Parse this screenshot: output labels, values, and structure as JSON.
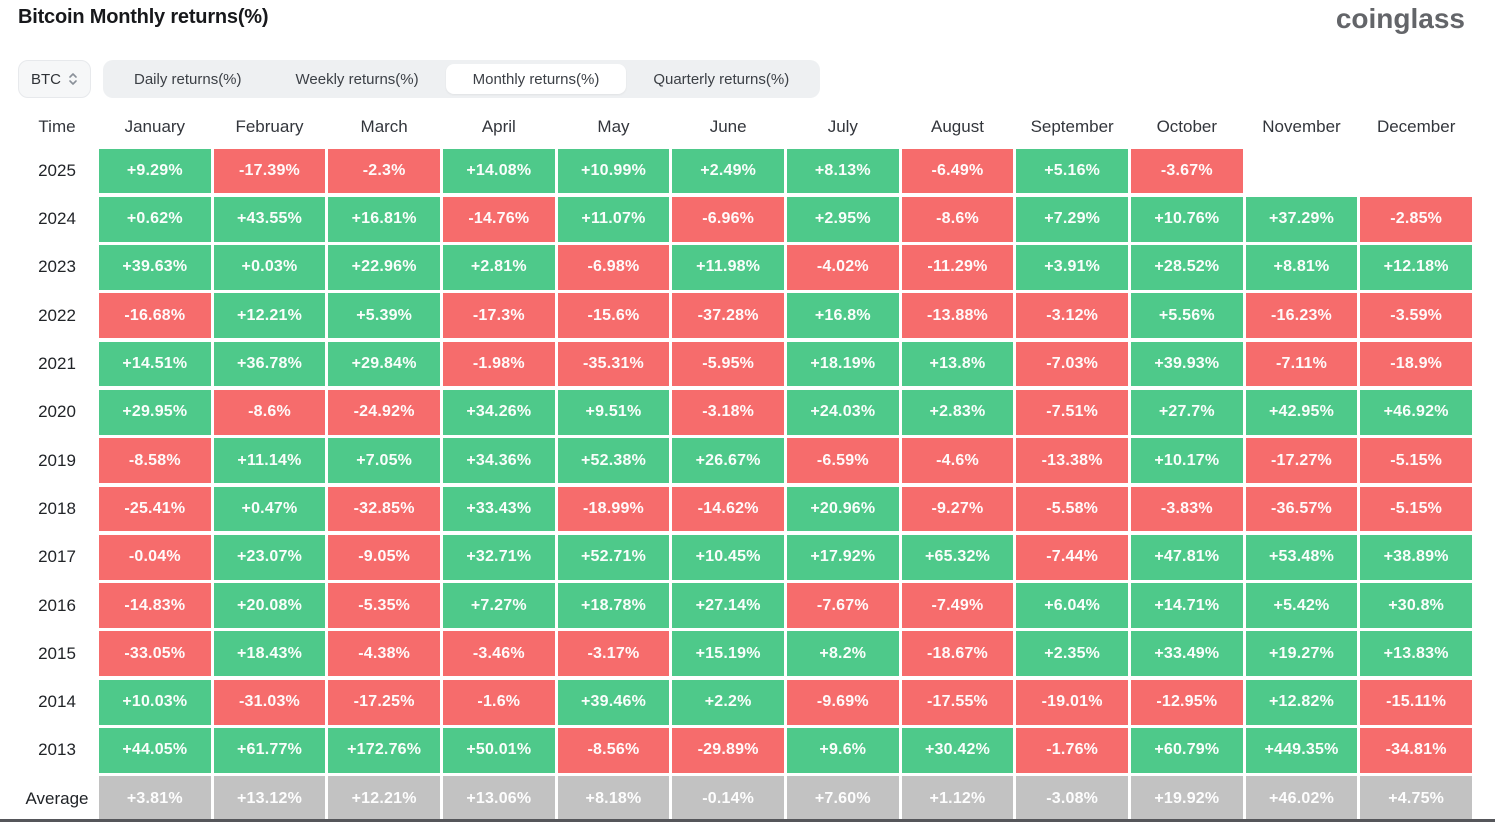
{
  "header": {
    "title": "Bitcoin Monthly returns(%)",
    "logo": "coinglass"
  },
  "controls": {
    "symbol_select": {
      "value": "BTC",
      "icon": "up-down-chevrons-icon"
    },
    "tabs": [
      {
        "label": "Daily returns(%)",
        "active": false
      },
      {
        "label": "Weekly returns(%)",
        "active": false
      },
      {
        "label": "Monthly returns(%)",
        "active": true
      },
      {
        "label": "Quarterly returns(%)",
        "active": false
      }
    ]
  },
  "colors": {
    "positive": "#4ec98a",
    "negative": "#f66c6c",
    "average_bg": "#c2c2c2",
    "cell_text": "#ffffff"
  },
  "table": {
    "time_header": "Time",
    "months": [
      "January",
      "February",
      "March",
      "April",
      "May",
      "June",
      "July",
      "August",
      "September",
      "October",
      "November",
      "December"
    ],
    "rows": [
      {
        "year": "2025",
        "values": [
          "+9.29%",
          "-17.39%",
          "-2.3%",
          "+14.08%",
          "+10.99%",
          "+2.49%",
          "+8.13%",
          "-6.49%",
          "+5.16%",
          "-3.67%",
          "",
          ""
        ]
      },
      {
        "year": "2024",
        "values": [
          "+0.62%",
          "+43.55%",
          "+16.81%",
          "-14.76%",
          "+11.07%",
          "-6.96%",
          "+2.95%",
          "-8.6%",
          "+7.29%",
          "+10.76%",
          "+37.29%",
          "-2.85%"
        ]
      },
      {
        "year": "2023",
        "values": [
          "+39.63%",
          "+0.03%",
          "+22.96%",
          "+2.81%",
          "-6.98%",
          "+11.98%",
          "-4.02%",
          "-11.29%",
          "+3.91%",
          "+28.52%",
          "+8.81%",
          "+12.18%"
        ]
      },
      {
        "year": "2022",
        "values": [
          "-16.68%",
          "+12.21%",
          "+5.39%",
          "-17.3%",
          "-15.6%",
          "-37.28%",
          "+16.8%",
          "-13.88%",
          "-3.12%",
          "+5.56%",
          "-16.23%",
          "-3.59%"
        ]
      },
      {
        "year": "2021",
        "values": [
          "+14.51%",
          "+36.78%",
          "+29.84%",
          "-1.98%",
          "-35.31%",
          "-5.95%",
          "+18.19%",
          "+13.8%",
          "-7.03%",
          "+39.93%",
          "-7.11%",
          "-18.9%"
        ]
      },
      {
        "year": "2020",
        "values": [
          "+29.95%",
          "-8.6%",
          "-24.92%",
          "+34.26%",
          "+9.51%",
          "-3.18%",
          "+24.03%",
          "+2.83%",
          "-7.51%",
          "+27.7%",
          "+42.95%",
          "+46.92%"
        ]
      },
      {
        "year": "2019",
        "values": [
          "-8.58%",
          "+11.14%",
          "+7.05%",
          "+34.36%",
          "+52.38%",
          "+26.67%",
          "-6.59%",
          "-4.6%",
          "-13.38%",
          "+10.17%",
          "-17.27%",
          "-5.15%"
        ]
      },
      {
        "year": "2018",
        "values": [
          "-25.41%",
          "+0.47%",
          "-32.85%",
          "+33.43%",
          "-18.99%",
          "-14.62%",
          "+20.96%",
          "-9.27%",
          "-5.58%",
          "-3.83%",
          "-36.57%",
          "-5.15%"
        ]
      },
      {
        "year": "2017",
        "values": [
          "-0.04%",
          "+23.07%",
          "-9.05%",
          "+32.71%",
          "+52.71%",
          "+10.45%",
          "+17.92%",
          "+65.32%",
          "-7.44%",
          "+47.81%",
          "+53.48%",
          "+38.89%"
        ]
      },
      {
        "year": "2016",
        "values": [
          "-14.83%",
          "+20.08%",
          "-5.35%",
          "+7.27%",
          "+18.78%",
          "+27.14%",
          "-7.67%",
          "-7.49%",
          "+6.04%",
          "+14.71%",
          "+5.42%",
          "+30.8%"
        ]
      },
      {
        "year": "2015",
        "values": [
          "-33.05%",
          "+18.43%",
          "-4.38%",
          "-3.46%",
          "-3.17%",
          "+15.19%",
          "+8.2%",
          "-18.67%",
          "+2.35%",
          "+33.49%",
          "+19.27%",
          "+13.83%"
        ]
      },
      {
        "year": "2014",
        "values": [
          "+10.03%",
          "-31.03%",
          "-17.25%",
          "-1.6%",
          "+39.46%",
          "+2.2%",
          "-9.69%",
          "-17.55%",
          "-19.01%",
          "-12.95%",
          "+12.82%",
          "-15.11%"
        ]
      },
      {
        "year": "2013",
        "values": [
          "+44.05%",
          "+61.77%",
          "+172.76%",
          "+50.01%",
          "-8.56%",
          "-29.89%",
          "+9.6%",
          "+30.42%",
          "-1.76%",
          "+60.79%",
          "+449.35%",
          "-34.81%"
        ]
      }
    ],
    "average": {
      "label": "Average",
      "values": [
        "+3.81%",
        "+13.12%",
        "+12.21%",
        "+13.06%",
        "+8.18%",
        "-0.14%",
        "+7.60%",
        "+1.12%",
        "-3.08%",
        "+19.92%",
        "+46.02%",
        "+4.75%"
      ]
    }
  }
}
